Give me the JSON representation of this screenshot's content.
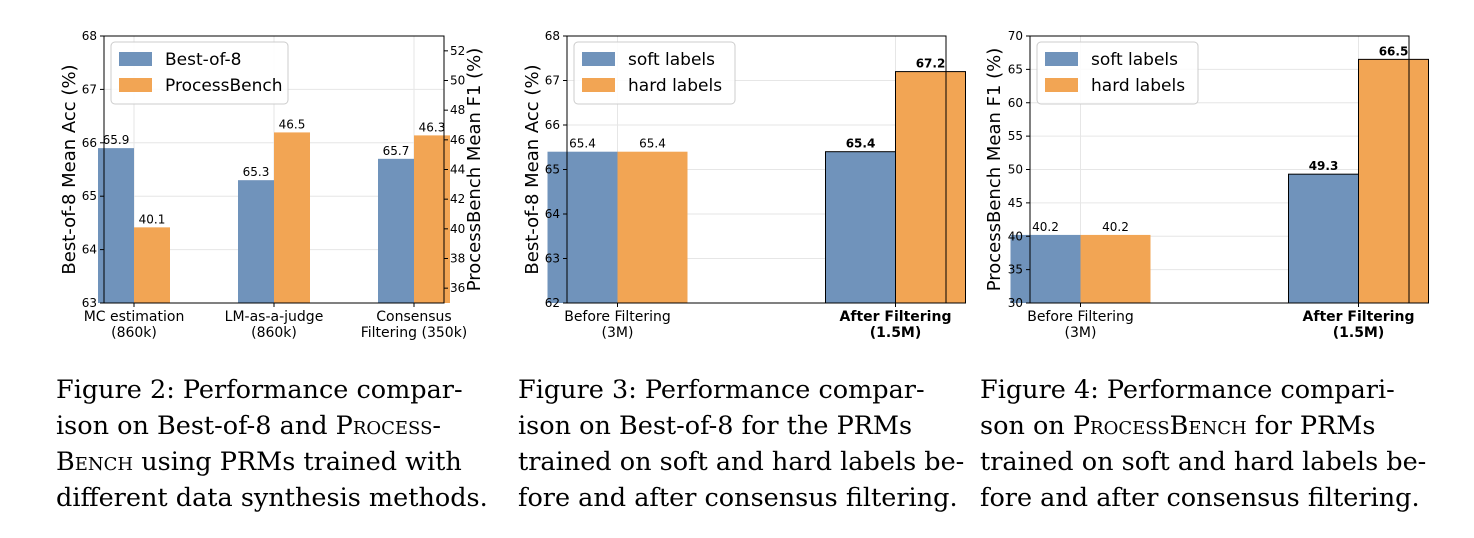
{
  "chart_data": [
    {
      "type": "bar",
      "categories": [
        "MC estimation\n(860k)",
        "LM-as-a-judge\n(860k)",
        "Consensus\nFiltering (350k)"
      ],
      "series": [
        {
          "name": "Best-of-8",
          "values": [
            65.9,
            65.3,
            65.7
          ],
          "axis": "left",
          "labels": [
            "65.9",
            "65.3",
            "65.7"
          ]
        },
        {
          "name": "ProcessBench",
          "values": [
            40.1,
            46.5,
            46.3
          ],
          "axis": "right",
          "labels": [
            "40.1",
            "46.5",
            "46.3"
          ]
        }
      ],
      "ylabel": "Best-of-8 Mean Acc (%)",
      "ylabel_right": "ProcessBench Mean F1 (%)",
      "ylim": [
        63,
        68
      ],
      "ylim_right": [
        35,
        53
      ],
      "yticks": [
        63,
        64,
        65,
        66,
        67,
        68
      ],
      "yticks_right": [
        36,
        38,
        40,
        42,
        44,
        46,
        48,
        50,
        52
      ],
      "legend_position": "upper-left",
      "grid": true
    },
    {
      "type": "bar",
      "categories": [
        "Before Filtering\n(3M)",
        "After Filtering\n(1.5M)"
      ],
      "bold_categories": [
        false,
        true
      ],
      "series": [
        {
          "name": "soft labels",
          "values": [
            65.4,
            65.4
          ],
          "labels": [
            "65.4",
            "65.4"
          ]
        },
        {
          "name": "hard labels",
          "values": [
            65.4,
            67.2
          ],
          "labels": [
            "65.4",
            "67.2"
          ]
        }
      ],
      "ylabel": "Best-of-8 Mean Acc (%)",
      "ylim": [
        62,
        68
      ],
      "yticks": [
        62,
        63,
        64,
        65,
        66,
        67,
        68
      ],
      "legend_position": "upper-left",
      "grid": true
    },
    {
      "type": "bar",
      "categories": [
        "Before Filtering\n(3M)",
        "After Filtering\n(1.5M)"
      ],
      "bold_categories": [
        false,
        true
      ],
      "series": [
        {
          "name": "soft labels",
          "values": [
            40.2,
            49.3
          ],
          "labels": [
            "40.2",
            "49.3"
          ]
        },
        {
          "name": "hard labels",
          "values": [
            40.2,
            66.5
          ],
          "labels": [
            "40.2",
            "66.5"
          ]
        }
      ],
      "ylabel": "ProcessBench Mean F1 (%)",
      "ylim": [
        30,
        70
      ],
      "yticks": [
        30,
        35,
        40,
        45,
        50,
        55,
        60,
        65,
        70
      ],
      "legend_position": "upper-left",
      "grid": true
    }
  ],
  "colors": {
    "blue": "#7093bb",
    "orange": "#f2a554"
  },
  "captions": {
    "fig2": {
      "l1": "Figure 2: Performance compar-",
      "l2a": "ison on Best-of-8 and ",
      "l2b": "Process-",
      "l3a": "Bench",
      "l3b": " using PRMs trained with",
      "l4": "different data synthesis methods."
    },
    "fig3": {
      "l1": "Figure 3: Performance compar-",
      "l2": "ison on Best-of-8 for the PRMs",
      "l3": "trained on soft and hard labels be-",
      "l4": "fore and after consensus filtering."
    },
    "fig4": {
      "l1": "Figure 4: Performance compari-",
      "l2a": "son on ",
      "l2b": "ProcessBench",
      "l2c": " for PRMs",
      "l3": "trained on soft and hard labels be-",
      "l4": "fore and after consensus filtering."
    }
  }
}
